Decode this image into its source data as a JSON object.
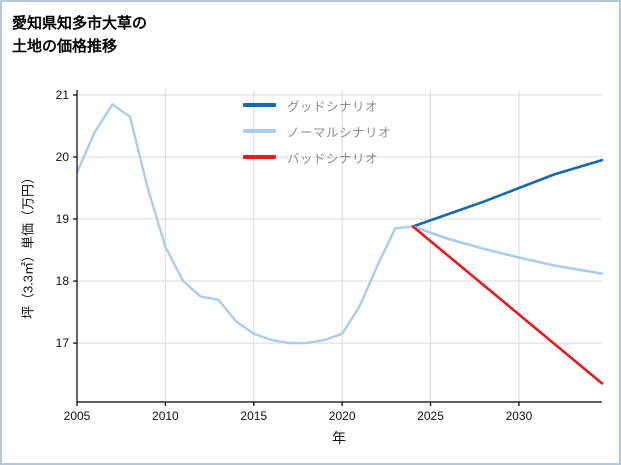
{
  "title_lines": [
    "愛知県知多市大草の",
    "土地の価格推移"
  ],
  "chart_data": {
    "type": "line",
    "title": "愛知県知多市大草の土地の価格推移",
    "xlabel": "年",
    "ylabel": "坪（3.3㎡）単価（万円）",
    "xlim": [
      2005,
      2034.7
    ],
    "ylim": [
      16.05,
      21.08
    ],
    "xticks": [
      2005,
      2010,
      2015,
      2020,
      2025,
      2030
    ],
    "yticks": [
      17,
      18,
      19,
      20,
      21
    ],
    "grid": true,
    "legend_position": "inside upper-center",
    "colors": {
      "good": "#1668b2",
      "normal": "#a9cdf0",
      "bad": "#e8191f",
      "history": "#a9cdf0",
      "grid": "#d9d9d9",
      "axis": "#000000",
      "tick_label": "#111111",
      "legend_text": "#8c8c8c"
    },
    "series": [
      {
        "key": "history",
        "color_key": "history",
        "width": 2.4,
        "x": [
          2005,
          2006,
          2007,
          2008,
          2009,
          2010,
          2011,
          2012,
          2013,
          2014,
          2015,
          2016,
          2017,
          2018,
          2019,
          2020,
          2021,
          2022,
          2023,
          2024
        ],
        "y": [
          19.75,
          20.4,
          20.85,
          20.65,
          19.5,
          18.55,
          18.0,
          17.75,
          17.7,
          17.35,
          17.15,
          17.05,
          17.0,
          17.0,
          17.05,
          17.15,
          17.6,
          18.25,
          18.85,
          18.88
        ]
      },
      {
        "key": "good-scenario",
        "color_key": "good",
        "width": 2.6,
        "x": [
          2024,
          2026,
          2028,
          2030,
          2032,
          2034.7
        ],
        "y": [
          18.88,
          19.08,
          19.28,
          19.5,
          19.72,
          19.95
        ]
      },
      {
        "key": "normal-scenario",
        "color_key": "normal",
        "width": 2.6,
        "x": [
          2024,
          2026,
          2028,
          2030,
          2032,
          2034.7
        ],
        "y": [
          18.88,
          18.68,
          18.52,
          18.38,
          18.25,
          18.12
        ]
      },
      {
        "key": "bad-scenario",
        "color_key": "bad",
        "width": 2.6,
        "x": [
          2024,
          2034.7
        ],
        "y": [
          18.88,
          16.35
        ]
      }
    ],
    "legend": [
      {
        "label": "グッドシナリオ",
        "color_key": "good"
      },
      {
        "label": "ノーマルシナリオ",
        "color_key": "normal"
      },
      {
        "label": "バッドシナリオ",
        "color_key": "bad"
      }
    ]
  }
}
